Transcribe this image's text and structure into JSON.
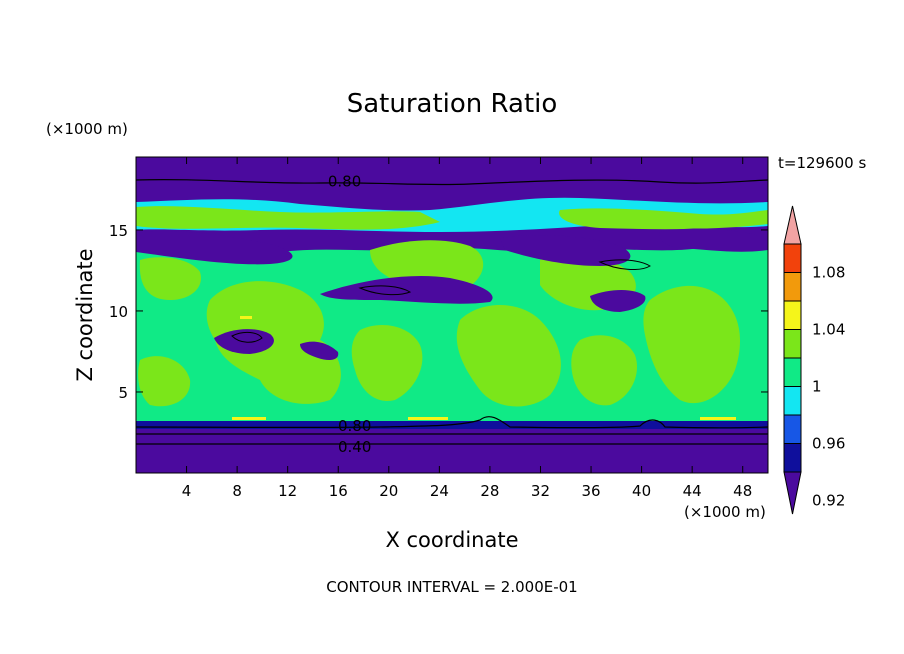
{
  "chart_data": {
    "type": "heatmap",
    "title": "Saturation Ratio",
    "xlabel": "X coordinate",
    "ylabel": "Z coordinate",
    "x_unit": "(×1000 m)",
    "y_unit": "(×1000 m)",
    "xlim": [
      0,
      50
    ],
    "ylim": [
      0,
      19.5
    ],
    "x_ticks": [
      4,
      8,
      12,
      16,
      20,
      24,
      28,
      32,
      36,
      40,
      44,
      48
    ],
    "y_ticks": [
      5,
      10,
      15
    ],
    "time_label": "t=129600 s",
    "footer": "CONTOUR INTERVAL = 2.000E-01",
    "contour_labels": [
      {
        "text": "0.80",
        "x": 16.5,
        "y": 18.0
      },
      {
        "text": "0.80",
        "x": 17.3,
        "y": 2.9
      },
      {
        "text": "0.40",
        "x": 17.3,
        "y": 1.6
      }
    ],
    "colorbar": {
      "labels": [
        "1.08",
        "1.04",
        "1",
        "0.96",
        "0.92"
      ],
      "colors": [
        "#4b0a9e",
        "#0f0f9c",
        "#1757e6",
        "#13e6f2",
        "#10ea86",
        "#7be61a",
        "#f5f51a",
        "#f29a0c",
        "#f2420c",
        "#f2a3a3"
      ]
    }
  }
}
